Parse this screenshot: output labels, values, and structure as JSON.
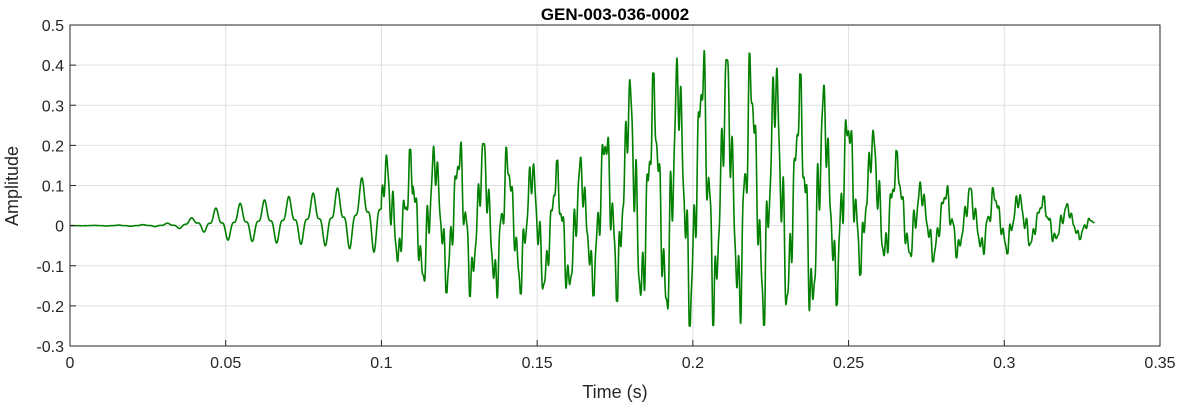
{
  "chart_data": {
    "type": "line",
    "title": "GEN-003-036-0002",
    "xlabel": "Time (s)",
    "ylabel": "Amplitude",
    "xlim": [
      0,
      0.35
    ],
    "ylim": [
      -0.3,
      0.5
    ],
    "xticks": [
      0,
      0.05,
      0.1,
      0.15,
      0.2,
      0.25,
      0.3,
      0.35
    ],
    "xtick_labels": [
      "0",
      "0.05",
      "0.1",
      "0.15",
      "0.2",
      "0.25",
      "0.3",
      "0.35"
    ],
    "yticks": [
      -0.3,
      -0.2,
      -0.1,
      0,
      0.1,
      0.2,
      0.3,
      0.4,
      0.5
    ],
    "ytick_labels": [
      "-0.3",
      "-0.2",
      "-0.1",
      "0",
      "0.1",
      "0.2",
      "0.3",
      "0.4",
      "0.5"
    ],
    "grid": true,
    "line_color": "#007F00",
    "series": [
      {
        "x": [
          0,
          0.01,
          0.02,
          0.028,
          0.034,
          0.038,
          0.042,
          0.046,
          0.05,
          0.054,
          0.058,
          0.062,
          0.066,
          0.07,
          0.074,
          0.078,
          0.082,
          0.086,
          0.09,
          0.094,
          0.098,
          0.102,
          0.106,
          0.11,
          0.114,
          0.118,
          0.122,
          0.126,
          0.13,
          0.134,
          0.138,
          0.142,
          0.146,
          0.15,
          0.154,
          0.158,
          0.162,
          0.166,
          0.17,
          0.174,
          0.178,
          0.182,
          0.186,
          0.19,
          0.194,
          0.198,
          0.202,
          0.206,
          0.21,
          0.214,
          0.218,
          0.222,
          0.226,
          0.23,
          0.234,
          0.238,
          0.242,
          0.246,
          0.25,
          0.254,
          0.258,
          0.262,
          0.266,
          0.27,
          0.274,
          0.278,
          0.282,
          0.286,
          0.29,
          0.294,
          0.298,
          0.302,
          0.306,
          0.31,
          0.314,
          0.318,
          0.322,
          0.326,
          0.329
        ],
        "max": [
          0,
          0.001,
          0.002,
          0.004,
          0.01,
          0.02,
          0.03,
          0.05,
          0.06,
          0.065,
          0.07,
          0.075,
          0.08,
          0.085,
          0.09,
          0.095,
          0.1,
          0.11,
          0.12,
          0.14,
          0.17,
          0.18,
          0.19,
          0.19,
          0.2,
          0.2,
          0.21,
          0.21,
          0.22,
          0.22,
          0.2,
          0.19,
          0.18,
          0.16,
          0.15,
          0.17,
          0.16,
          0.18,
          0.22,
          0.3,
          0.36,
          0.38,
          0.38,
          0.38,
          0.42,
          0.43,
          0.44,
          0.44,
          0.44,
          0.44,
          0.43,
          0.42,
          0.42,
          0.4,
          0.38,
          0.36,
          0.35,
          0.33,
          0.3,
          0.26,
          0.24,
          0.22,
          0.18,
          0.14,
          0.1,
          0.1,
          0.1,
          0.1,
          0.1,
          0.1,
          0.09,
          0.09,
          0.08,
          0.08,
          0.07,
          0.06,
          0.05,
          0.03,
          0.01
        ],
        "min": [
          0,
          -0.001,
          -0.002,
          -0.003,
          -0.008,
          -0.012,
          -0.015,
          -0.04,
          -0.045,
          -0.048,
          -0.05,
          -0.052,
          -0.055,
          -0.058,
          -0.06,
          -0.062,
          -0.065,
          -0.07,
          -0.075,
          -0.08,
          -0.09,
          -0.1,
          -0.12,
          -0.14,
          -0.16,
          -0.16,
          -0.17,
          -0.17,
          -0.18,
          -0.18,
          -0.18,
          -0.17,
          -0.17,
          -0.17,
          -0.17,
          -0.17,
          -0.19,
          -0.18,
          -0.17,
          -0.18,
          -0.2,
          -0.22,
          -0.22,
          -0.24,
          -0.25,
          -0.25,
          -0.25,
          -0.25,
          -0.24,
          -0.24,
          -0.25,
          -0.25,
          -0.24,
          -0.22,
          -0.24,
          -0.25,
          -0.22,
          -0.2,
          -0.16,
          -0.12,
          -0.1,
          -0.1,
          -0.09,
          -0.09,
          -0.09,
          -0.09,
          -0.08,
          -0.08,
          -0.08,
          -0.07,
          -0.07,
          -0.07,
          -0.06,
          -0.05,
          -0.05,
          -0.04,
          -0.04,
          -0.03,
          -0.01
        ]
      }
    ]
  }
}
